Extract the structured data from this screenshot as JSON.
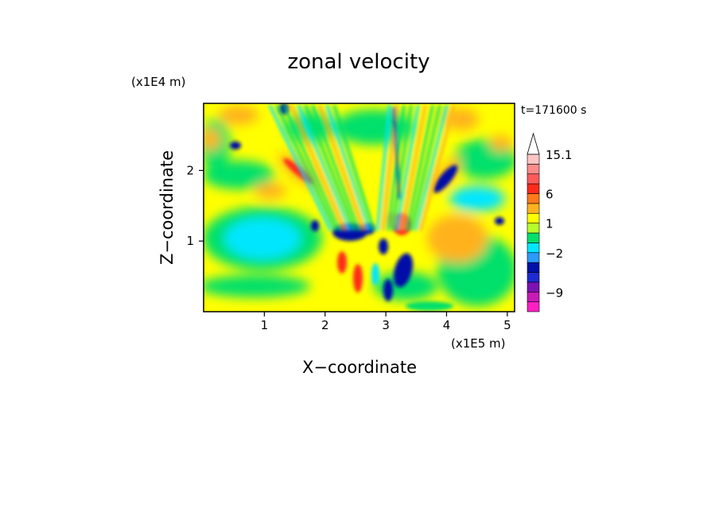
{
  "chart_data": {
    "type": "heatmap",
    "title": "zonal velocity",
    "xlabel": "X−coordinate",
    "ylabel": "Z−coordinate",
    "x_unit": "(x1E5 m)",
    "y_unit": "(x1E4 m)",
    "time_label": "t=171600 s",
    "xlim": [
      0,
      5.12
    ],
    "ylim": [
      0,
      2.95
    ],
    "x_ticks": [
      {
        "value": 1,
        "label": "1"
      },
      {
        "value": 2,
        "label": "2"
      },
      {
        "value": 3,
        "label": "3"
      },
      {
        "value": 4,
        "label": "4"
      },
      {
        "value": 5,
        "label": "5"
      }
    ],
    "y_ticks": [
      {
        "value": 1,
        "label": "1"
      },
      {
        "value": 2,
        "label": "2"
      }
    ],
    "colorbar": {
      "levels_bottom_to_top": [
        {
          "color": "#ff1fc4",
          "label": ""
        },
        {
          "color": "#c81ab4",
          "label": "−9"
        },
        {
          "color": "#7d12b4",
          "label": ""
        },
        {
          "color": "#1e2ad2",
          "label": ""
        },
        {
          "color": "#0010a8",
          "label": ""
        },
        {
          "color": "#2a9bff",
          "label": "−2"
        },
        {
          "color": "#00e6ff",
          "label": ""
        },
        {
          "color": "#00e06a",
          "label": ""
        },
        {
          "color": "#b6ff2a",
          "label": "1"
        },
        {
          "color": "#ffff00",
          "label": ""
        },
        {
          "color": "#ffb21f",
          "label": ""
        },
        {
          "color": "#ff7a1a",
          "label": "6"
        },
        {
          "color": "#ff2a1a",
          "label": ""
        },
        {
          "color": "#ff5a5a",
          "label": ""
        },
        {
          "color": "#ff8c8c",
          "label": ""
        },
        {
          "color": "#ffc4c4",
          "label": "15.1"
        }
      ],
      "extend_top": true
    },
    "field_palette": {
      "strong_negative": "#0010a8",
      "negative": "#1e2ad2",
      "weak_negative": "#00e6ff",
      "near_zero": "#00e06a",
      "weak_positive": "#ffff00",
      "positive": "#ffb21f",
      "strong_positive": "#ff2a1a",
      "extreme_positive": "#ff8c8c"
    }
  }
}
